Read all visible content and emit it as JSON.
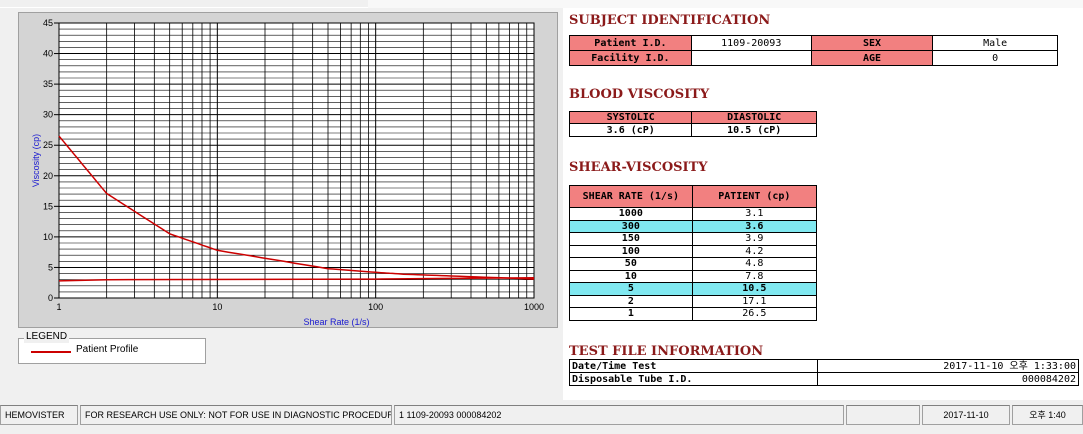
{
  "chart_data": {
    "type": "line",
    "xlabel": "Shear Rate (1/s)",
    "ylabel": "Viscosity (cp)",
    "xscale": "log",
    "xlim": [
      1,
      1000
    ],
    "ylim": [
      0,
      45
    ],
    "x_ticks": [
      "1",
      "10",
      "100",
      "1000"
    ],
    "y_ticks": [
      "0",
      "5",
      "10",
      "15",
      "20",
      "25",
      "30",
      "35",
      "40",
      "45"
    ],
    "grid": true,
    "series": [
      {
        "name": "Patient Profile",
        "x": [
          1,
          2,
          5,
          10,
          50,
          100,
          150,
          300,
          1000
        ],
        "values": [
          26.5,
          17.1,
          10.5,
          7.8,
          4.8,
          4.2,
          3.9,
          3.6,
          3.1
        ],
        "color": "#cc0000"
      },
      {
        "name": "",
        "x": [
          1,
          2,
          100,
          300,
          1000
        ],
        "values": [
          2.8,
          3.0,
          3.1,
          3.2,
          3.3
        ],
        "color": "#cc0000"
      }
    ]
  },
  "legend": {
    "title": "LEGEND",
    "label": "Patient Profile"
  },
  "subject": {
    "title": "SUBJECT IDENTIFICATION",
    "patient_id_label": "Patient I.D.",
    "patient_id": "1109-20093",
    "sex_label": "SEX",
    "sex": "Male",
    "facility_label": "Facility I.D.",
    "facility": "",
    "age_label": "AGE",
    "age": "0"
  },
  "blood": {
    "title": "BLOOD VISCOSITY",
    "systolic_label": "SYSTOLIC",
    "diastolic_label": "DIASTOLIC",
    "systolic": "3.6 (cP)",
    "diastolic": "10.5 (cP)"
  },
  "shear": {
    "title": "SHEAR-VISCOSITY",
    "col1": "SHEAR RATE (1/s)",
    "col2": "PATIENT (cp)",
    "rows": [
      {
        "rate": "1000",
        "value": "3.1"
      },
      {
        "rate": "300",
        "value": "3.6"
      },
      {
        "rate": "150",
        "value": "3.9"
      },
      {
        "rate": "100",
        "value": "4.2"
      },
      {
        "rate": "50",
        "value": "4.8"
      },
      {
        "rate": "10",
        "value": "7.8"
      },
      {
        "rate": "5",
        "value": "10.5"
      },
      {
        "rate": "2",
        "value": "17.1"
      },
      {
        "rate": "1",
        "value": "26.5"
      }
    ]
  },
  "testfile": {
    "title": "TEST FILE INFORMATION",
    "datetime_label": "Date/Time Test",
    "datetime": "2017-11-10  오후 1:33:00",
    "tube_label": "Disposable Tube I.D.",
    "tube": "000084202"
  },
  "status": {
    "app": "HEMOVISTER",
    "notice": "FOR RESEARCH USE ONLY: NOT FOR USE IN DIAGNOSTIC PROCEDURES",
    "record": "1  1109-20093  000084202",
    "blank": "",
    "date": "2017-11-10",
    "time": "오후 1:40"
  },
  "colors": {
    "header_red": "#f28080",
    "highlight_cyan": "#80e8f0",
    "title_red": "#8b1a1a",
    "curve": "#cc0000"
  }
}
